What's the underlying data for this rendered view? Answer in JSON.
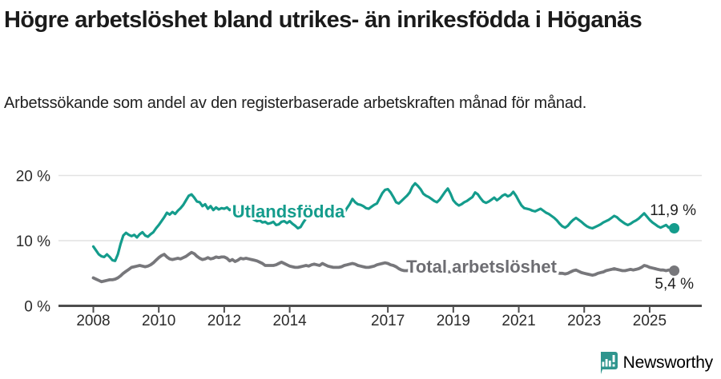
{
  "page": {
    "title": "Högre arbetslöshet bland utrikes- än inrikesfödda i Höganäs",
    "subtitle": "Arbetssökande som andel av den registerbaserade arbetskraften månad för månad."
  },
  "branding": {
    "logo_text": "Newsworthy",
    "logo_color": "#37918b",
    "logo_icon": "bar-chart-speech-bubble"
  },
  "colors": {
    "foreign_born_line": "#149c8c",
    "total_line": "#77777b",
    "total_label": "#6d6d72",
    "axis": "#4d4d4d",
    "grid": "#e2e2e2",
    "tick_label": "#2b2b2b",
    "value_label": "#1f1f1f",
    "background": "#ffffff"
  },
  "chart_data": {
    "type": "line",
    "title": "Högre arbetslöshet bland utrikes- än inrikesfödda i Höganäs",
    "subtitle": "Arbetssökande som andel av den registerbaserade arbetskraften månad för månad.",
    "unit": "%",
    "x_start_year": 2008,
    "x_step_months": 1,
    "x_end_year": 2025.75,
    "ylim": [
      0,
      20
    ],
    "grid": "horizontal",
    "legend": "inline-labels",
    "yticks": [
      {
        "value": 0,
        "label": "0 %"
      },
      {
        "value": 10,
        "label": "10 %"
      },
      {
        "value": 20,
        "label": "20 %"
      }
    ],
    "xticks": [
      {
        "value": 2008,
        "label": "2008"
      },
      {
        "value": 2010,
        "label": "2010"
      },
      {
        "value": 2012,
        "label": "2012"
      },
      {
        "value": 2014,
        "label": "2014"
      },
      {
        "value": 2017,
        "label": "2017"
      },
      {
        "value": 2019,
        "label": "2019"
      },
      {
        "value": 2021,
        "label": "2021"
      },
      {
        "value": 2023,
        "label": "2023"
      },
      {
        "value": 2025,
        "label": "2025"
      }
    ],
    "series": [
      {
        "name": "Utlandsfödda",
        "color": "#149c8c",
        "end_value": 11.9,
        "end_label": "11,9 %",
        "values": [
          9.1,
          8.5,
          7.9,
          7.6,
          7.5,
          7.9,
          7.5,
          7.0,
          6.9,
          7.9,
          9.5,
          10.8,
          11.2,
          10.9,
          10.7,
          10.9,
          10.5,
          11.0,
          11.3,
          10.8,
          10.6,
          11.0,
          11.3,
          11.9,
          12.4,
          13.0,
          13.6,
          14.3,
          14.0,
          14.4,
          14.1,
          14.6,
          15.0,
          15.5,
          16.2,
          16.9,
          17.1,
          16.6,
          16.0,
          15.9,
          15.3,
          15.6,
          14.9,
          15.3,
          14.7,
          15.1,
          14.8,
          15.0,
          14.9,
          15.1,
          14.7,
          14.9,
          14.6,
          14.3,
          14.4,
          14.0,
          13.8,
          13.9,
          13.5,
          13.2,
          13.0,
          13.1,
          12.8,
          12.9,
          12.6,
          12.7,
          12.9,
          12.4,
          12.5,
          12.9,
          13.0,
          12.7,
          13.0,
          12.6,
          12.3,
          11.9,
          12.1,
          12.8,
          13.4,
          14.0,
          14.7,
          14.4,
          14.3,
          14.5,
          14.6,
          14.9,
          15.1,
          14.6,
          14.8,
          14.9,
          14.8,
          14.5,
          14.3,
          15.0,
          15.6,
          16.4,
          15.9,
          15.6,
          15.5,
          15.3,
          15.0,
          14.9,
          15.2,
          15.5,
          15.7,
          16.5,
          17.3,
          17.8,
          17.9,
          17.4,
          16.7,
          15.9,
          15.7,
          16.1,
          16.5,
          16.9,
          17.4,
          18.3,
          18.8,
          18.4,
          17.9,
          17.2,
          16.9,
          16.7,
          16.4,
          16.1,
          15.9,
          16.3,
          16.9,
          17.5,
          18.0,
          17.2,
          16.2,
          15.7,
          15.4,
          15.6,
          15.9,
          16.1,
          16.4,
          16.7,
          17.4,
          17.1,
          16.5,
          16.0,
          15.8,
          16.0,
          16.3,
          16.6,
          16.2,
          16.5,
          16.9,
          17.1,
          16.8,
          17.0,
          17.5,
          16.9,
          16.1,
          15.4,
          15.0,
          14.9,
          14.8,
          14.6,
          14.5,
          14.7,
          14.9,
          14.6,
          14.3,
          14.1,
          13.8,
          13.5,
          13.1,
          12.6,
          12.2,
          12.0,
          12.3,
          12.8,
          13.2,
          13.5,
          13.2,
          12.9,
          12.5,
          12.2,
          12.0,
          11.9,
          12.1,
          12.3,
          12.5,
          12.8,
          13.0,
          13.2,
          13.5,
          13.8,
          13.6,
          13.2,
          12.9,
          12.6,
          12.4,
          12.6,
          12.9,
          13.1,
          13.4,
          13.8,
          14.2,
          13.7,
          13.2,
          12.8,
          12.5,
          12.2,
          12.0,
          12.2,
          12.4,
          12.0,
          12.2,
          11.9
        ]
      },
      {
        "name": "Total arbetslöshet",
        "color": "#77777b",
        "end_value": 5.4,
        "end_label": "5,4 %",
        "values": [
          4.3,
          4.1,
          3.9,
          3.7,
          3.8,
          3.9,
          4.0,
          4.0,
          4.1,
          4.3,
          4.6,
          5.0,
          5.3,
          5.6,
          5.9,
          6.0,
          6.1,
          6.2,
          6.1,
          6.0,
          6.1,
          6.3,
          6.6,
          7.0,
          7.4,
          7.7,
          7.9,
          7.5,
          7.2,
          7.1,
          7.2,
          7.3,
          7.2,
          7.4,
          7.6,
          7.9,
          8.2,
          8.0,
          7.6,
          7.3,
          7.1,
          7.2,
          7.4,
          7.2,
          7.3,
          7.5,
          7.4,
          7.5,
          7.5,
          7.3,
          6.9,
          7.1,
          6.8,
          7.0,
          7.3,
          7.2,
          7.3,
          7.2,
          7.1,
          7.0,
          6.9,
          6.7,
          6.5,
          6.2,
          6.2,
          6.2,
          6.2,
          6.3,
          6.5,
          6.7,
          6.5,
          6.3,
          6.1,
          6.0,
          5.9,
          5.9,
          6.0,
          6.1,
          6.2,
          6.1,
          6.3,
          6.4,
          6.3,
          6.2,
          6.5,
          6.3,
          6.1,
          6.0,
          5.9,
          5.9,
          5.9,
          6.0,
          6.2,
          6.3,
          6.4,
          6.5,
          6.4,
          6.2,
          6.1,
          6.0,
          5.9,
          5.9,
          6.0,
          6.1,
          6.3,
          6.4,
          6.5,
          6.6,
          6.5,
          6.3,
          6.2,
          6.0,
          5.7,
          5.5,
          5.4,
          5.4,
          5.5,
          5.6,
          5.6,
          5.5,
          5.5,
          5.4,
          5.3,
          5.2,
          5.1,
          5.1,
          5.2,
          5.2,
          5.3,
          5.3,
          5.2,
          5.2,
          5.2,
          5.1,
          5.0,
          5.0,
          5.1,
          5.1,
          5.2,
          5.2,
          5.3,
          5.3,
          5.2,
          5.3,
          5.4,
          5.6,
          6.0,
          6.3,
          6.5,
          6.6,
          6.6,
          6.5,
          6.4,
          6.3,
          6.3,
          6.2,
          6.2,
          6.1,
          6.0,
          5.9,
          5.8,
          5.7,
          5.7,
          5.6,
          5.5,
          5.4,
          5.3,
          5.2,
          5.2,
          5.1,
          5.1,
          5.0,
          5.0,
          4.9,
          5.0,
          5.2,
          5.4,
          5.5,
          5.3,
          5.1,
          5.0,
          4.9,
          4.8,
          4.7,
          4.8,
          5.0,
          5.1,
          5.2,
          5.4,
          5.5,
          5.6,
          5.7,
          5.6,
          5.5,
          5.4,
          5.4,
          5.5,
          5.6,
          5.5,
          5.6,
          5.7,
          5.9,
          6.2,
          6.1,
          5.9,
          5.8,
          5.7,
          5.6,
          5.5,
          5.5,
          5.4,
          5.5,
          5.4,
          5.4
        ]
      }
    ]
  }
}
